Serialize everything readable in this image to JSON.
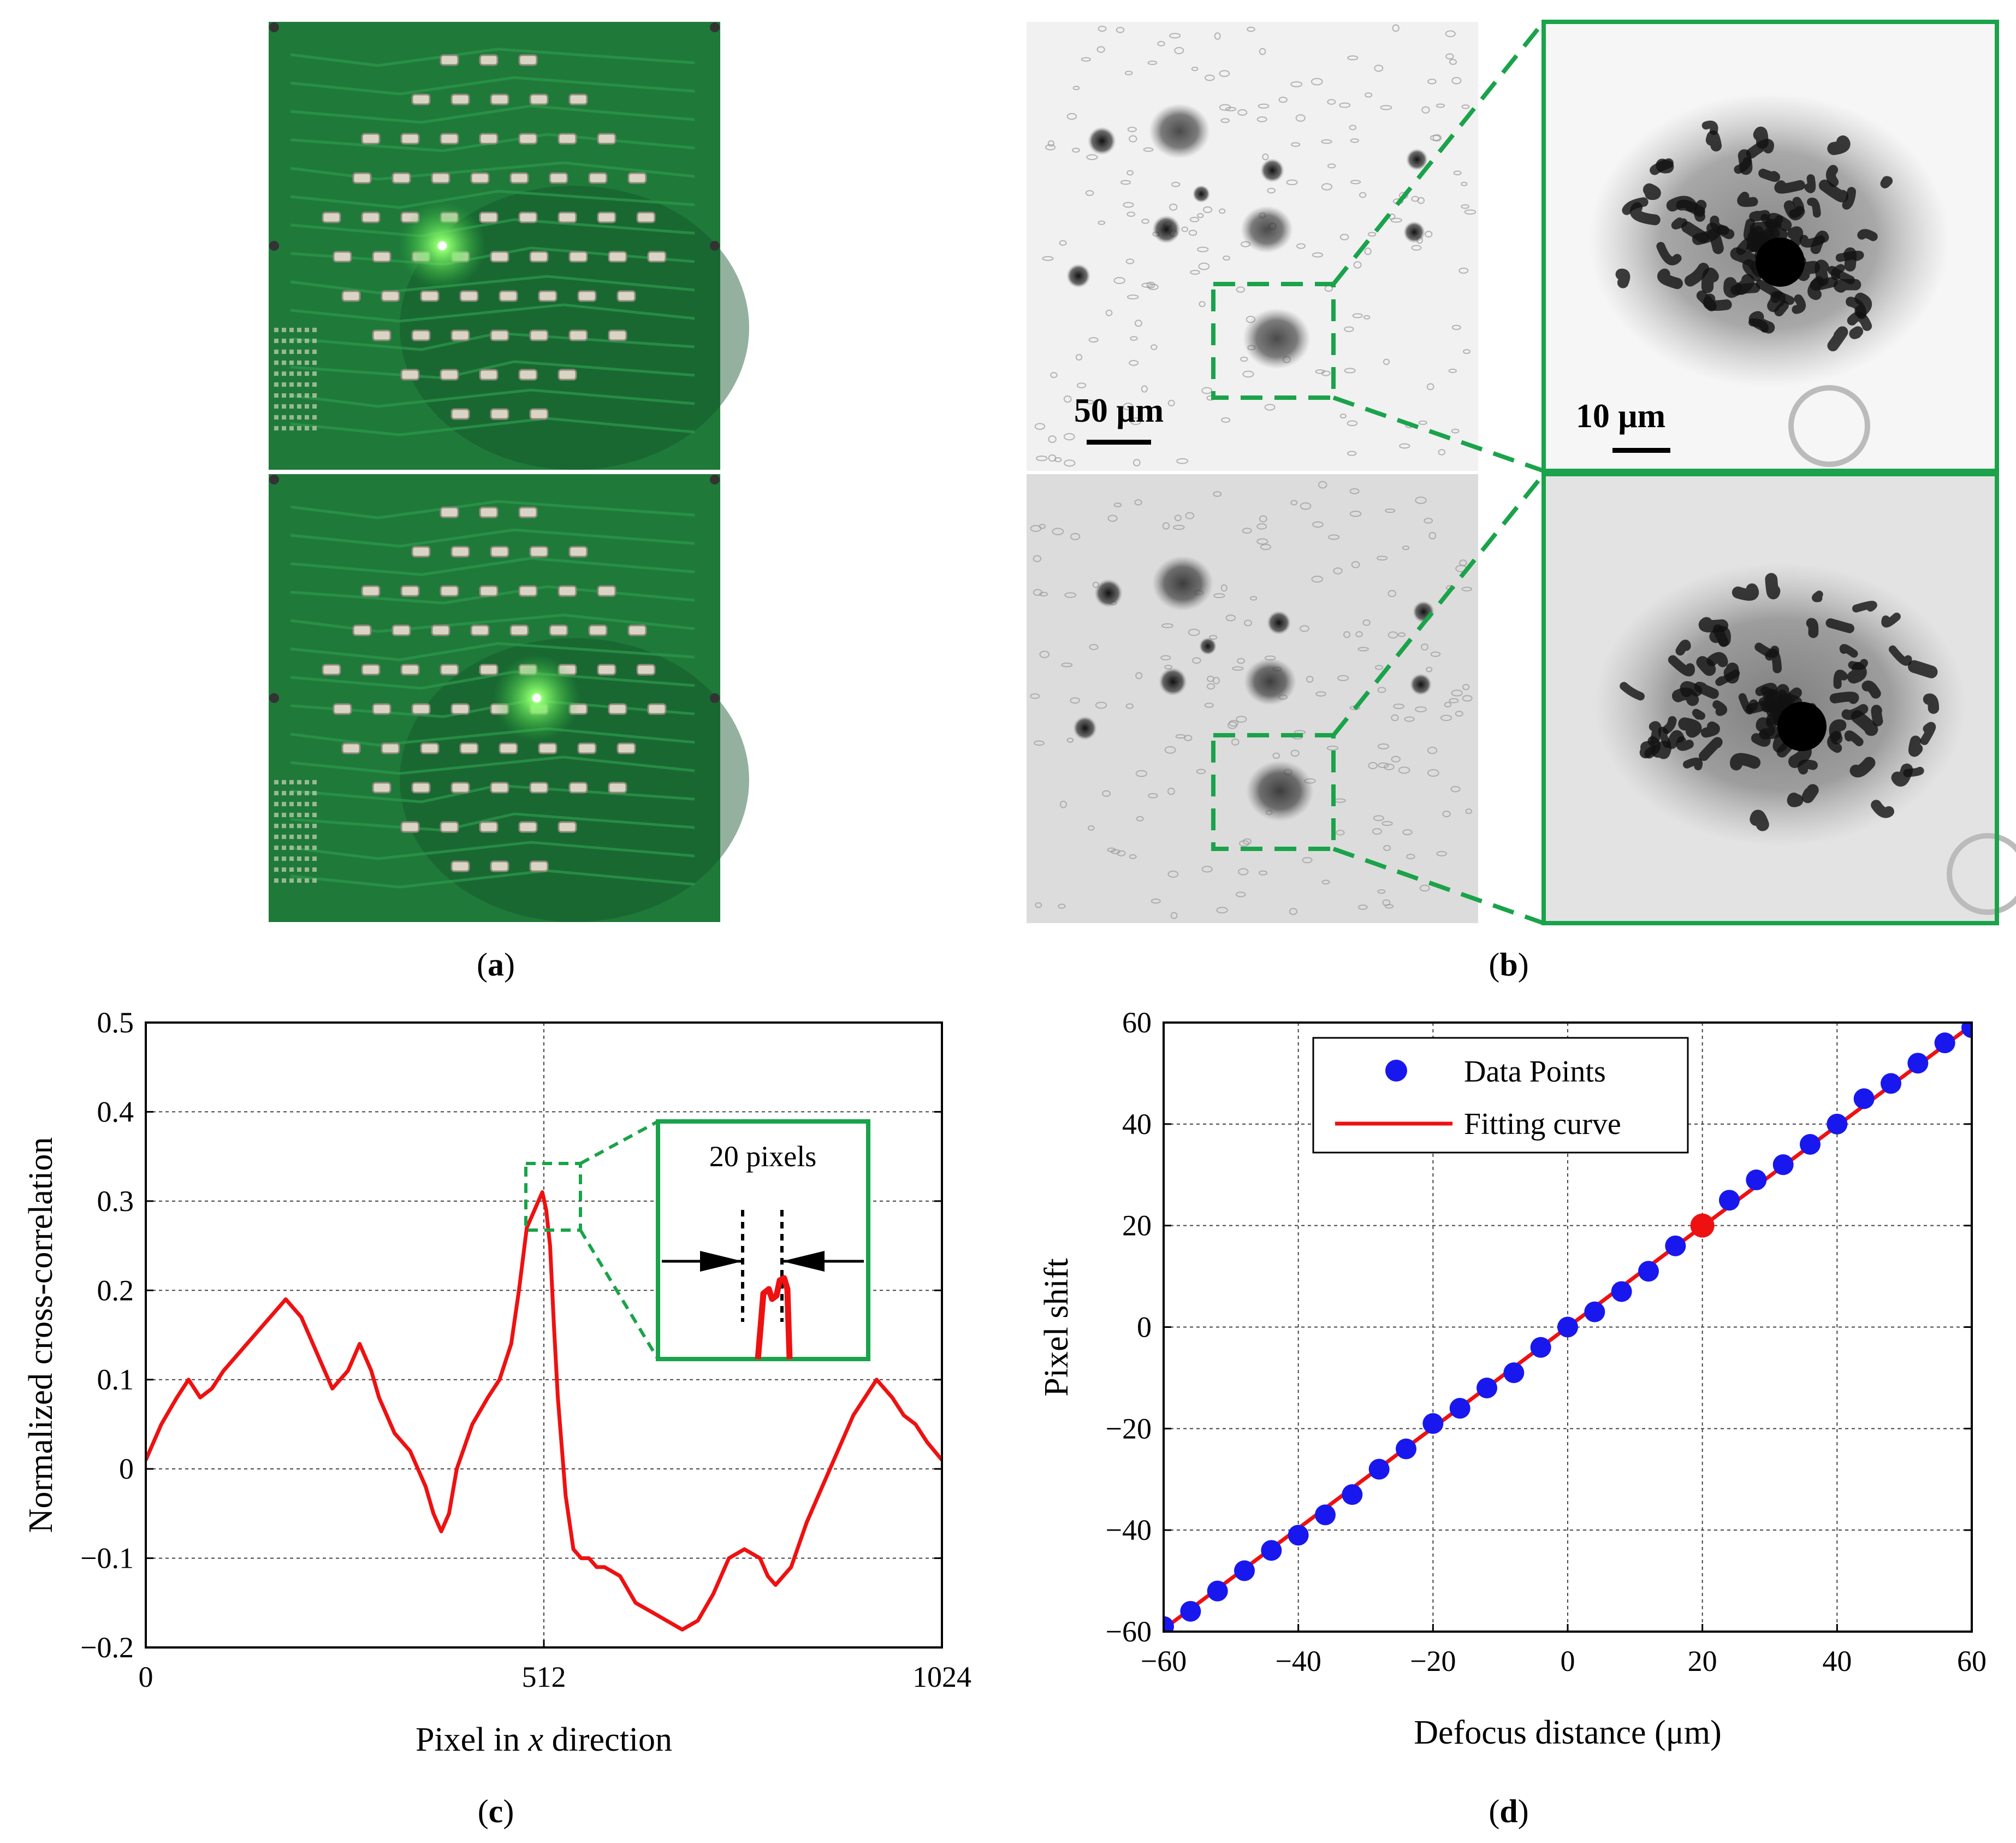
{
  "panels": {
    "a": {
      "label": "(a)",
      "letter": "a",
      "caption": "LED array board (two illumination states)"
    },
    "b": {
      "label": "(b)",
      "letter": "b"
    },
    "c": {
      "label": "(c)",
      "letter": "c"
    },
    "d": {
      "label": "(d)",
      "letter": "d"
    }
  },
  "scale_bars": {
    "large": "50 μm",
    "small": "10 μm"
  },
  "colors": {
    "board": "#1f7a3a",
    "board_dark": "#11532a",
    "led_glow": "#6dff5a",
    "highlight_box": "#1aa34a",
    "red_curve": "#ee1111",
    "blue_points": "#1818ee",
    "grid": "#444444"
  },
  "chart_data": [
    {
      "id": "c",
      "type": "line",
      "title": "",
      "xlabel_prefix": "Pixel in ",
      "xlabel_var": "x",
      "xlabel_suffix": " direction",
      "ylabel": "Normalized cross-correlation",
      "xlim": [
        0,
        1024
      ],
      "ylim": [
        -0.2,
        0.5
      ],
      "xticks": [
        0,
        512,
        1024
      ],
      "xtick_labels": [
        "0",
        "512",
        "1024"
      ],
      "yticks": [
        0.5,
        0.4,
        0.3,
        0.2,
        0.1,
        0,
        -0.1,
        -0.2
      ],
      "ytick_labels": [
        "0.5",
        "0.4",
        "0.3",
        "0.2",
        "0.1",
        "0",
        "−0.1",
        "−0.2"
      ],
      "grid": true,
      "inset_label": "20 pixels",
      "x": [
        0,
        20,
        40,
        55,
        70,
        85,
        100,
        120,
        140,
        160,
        180,
        200,
        220,
        240,
        260,
        275,
        290,
        300,
        310,
        320,
        340,
        360,
        370,
        380,
        390,
        400,
        420,
        440,
        455,
        470,
        480,
        490,
        500,
        505,
        510,
        515,
        520,
        525,
        530,
        540,
        550,
        560,
        570,
        580,
        590,
        610,
        630,
        650,
        670,
        690,
        710,
        730,
        740,
        750,
        770,
        790,
        800,
        810,
        830,
        850,
        870,
        890,
        910,
        940,
        960,
        975,
        990,
        1005,
        1024
      ],
      "y": [
        0.01,
        0.05,
        0.08,
        0.1,
        0.08,
        0.09,
        0.11,
        0.13,
        0.15,
        0.17,
        0.19,
        0.17,
        0.13,
        0.09,
        0.11,
        0.14,
        0.11,
        0.08,
        0.06,
        0.04,
        0.02,
        -0.02,
        -0.05,
        -0.07,
        -0.05,
        0.0,
        0.05,
        0.08,
        0.1,
        0.14,
        0.2,
        0.27,
        0.29,
        0.3,
        0.31,
        0.29,
        0.25,
        0.16,
        0.08,
        -0.03,
        -0.09,
        -0.1,
        -0.1,
        -0.11,
        -0.11,
        -0.12,
        -0.15,
        -0.16,
        -0.17,
        -0.18,
        -0.17,
        -0.14,
        -0.12,
        -0.1,
        -0.09,
        -0.1,
        -0.12,
        -0.13,
        -0.11,
        -0.06,
        -0.02,
        0.02,
        0.06,
        0.1,
        0.08,
        0.06,
        0.05,
        0.03,
        0.01
      ]
    },
    {
      "id": "d",
      "type": "scatter",
      "title": "",
      "xlabel": "Defocus distance (μm)",
      "ylabel": "Pixel shift",
      "xlim": [
        -60,
        60
      ],
      "ylim": [
        -60,
        60
      ],
      "xticks": [
        -60,
        -40,
        -20,
        0,
        20,
        40,
        60
      ],
      "xtick_labels": [
        "−60",
        "−40",
        "−20",
        "0",
        "20",
        "40",
        "60"
      ],
      "yticks": [
        60,
        40,
        20,
        0,
        -20,
        -40,
        -60
      ],
      "ytick_labels": [
        "60",
        "40",
        "20",
        "0",
        "−20",
        "−40",
        "−60"
      ],
      "grid": true,
      "legend": [
        "Data Points",
        "Fitting curve"
      ],
      "legend_position": "top-left",
      "series": [
        {
          "name": "Data Points",
          "x": [
            -60,
            -56,
            -52,
            -48,
            -44,
            -40,
            -36,
            -32,
            -28,
            -24,
            -20,
            -16,
            -12,
            -8,
            -4,
            0,
            4,
            8,
            12,
            16,
            24,
            28,
            32,
            36,
            40,
            44,
            48,
            52,
            56,
            60
          ],
          "y": [
            -59,
            -56,
            -52,
            -48,
            -44,
            -41,
            -37,
            -33,
            -28,
            -24,
            -19,
            -16,
            -12,
            -9,
            -4,
            0,
            3,
            7,
            11,
            16,
            25,
            29,
            32,
            36,
            40,
            45,
            48,
            52,
            56,
            59
          ]
        },
        {
          "name": "Fitting curve",
          "x": [
            -60,
            60
          ],
          "y": [
            -59.5,
            59.5
          ]
        },
        {
          "name": "highlight",
          "x": [
            20
          ],
          "y": [
            20
          ]
        }
      ]
    }
  ]
}
